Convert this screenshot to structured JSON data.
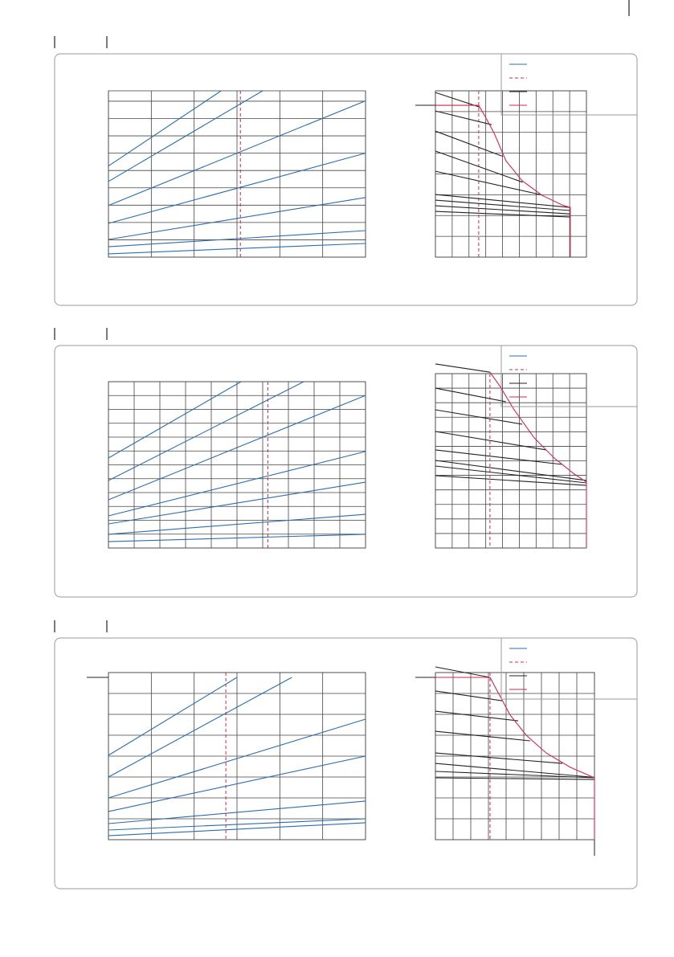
{
  "chart_data": [
    {
      "type": "line",
      "xlim": [
        0,
        6
      ],
      "ylim": [
        0,
        9.6
      ],
      "xticks": [
        0,
        1,
        2,
        3,
        4,
        5,
        6
      ],
      "yticks": [
        0,
        1,
        2,
        3,
        4,
        5,
        6,
        7,
        8,
        9
      ],
      "grid": true,
      "reference_x": 3.08,
      "reference_color": "#d5244f",
      "series": [
        {
          "color": "#2a6db0",
          "x": [
            0,
            2.63
          ],
          "values": [
            5.26,
            9.6
          ]
        },
        {
          "color": "#2a6db0",
          "x": [
            0,
            3.6
          ],
          "values": [
            4.37,
            9.6
          ]
        },
        {
          "color": "#2a6db0",
          "x": [
            0,
            6
          ],
          "values": [
            2.98,
            9.02
          ]
        },
        {
          "color": "#2a6db0",
          "x": [
            0,
            6
          ],
          "values": [
            1.95,
            6.0
          ]
        },
        {
          "color": "#2a6db0",
          "x": [
            0,
            6
          ],
          "values": [
            1.02,
            3.44
          ]
        },
        {
          "color": "#2a6db0",
          "x": [
            0,
            6
          ],
          "values": [
            0.6,
            1.53
          ]
        },
        {
          "color": "#2a6db0",
          "x": [
            0,
            6
          ],
          "values": [
            0.19,
            0.79
          ]
        }
      ]
    },
    {
      "type": "line",
      "xlim": [
        0,
        9
      ],
      "ylim": [
        0,
        8
      ],
      "xticks": [
        0,
        1,
        2,
        3,
        4,
        5,
        6,
        7,
        8,
        9
      ],
      "yticks": [
        0,
        1,
        2,
        3,
        4,
        5,
        6,
        7,
        8
      ],
      "grid": true,
      "reference_x": 2.58,
      "reference_color": "#d5244f",
      "series": [
        {
          "color": "#222222",
          "x": [
            0,
            2.63
          ],
          "values": [
            7.92,
            7.22
          ]
        },
        {
          "color": "#222222",
          "x": [
            0,
            3.35
          ],
          "values": [
            7.03,
            6.37
          ]
        },
        {
          "color": "#222222",
          "x": [
            0,
            4.0
          ],
          "values": [
            6.06,
            4.85
          ]
        },
        {
          "color": "#222222",
          "x": [
            0,
            5.2
          ],
          "values": [
            5.1,
            3.6
          ]
        },
        {
          "color": "#222222",
          "x": [
            0,
            6.3
          ],
          "values": [
            4.13,
            3.0
          ]
        },
        {
          "color": "#222222",
          "x": [
            0,
            8.04
          ],
          "values": [
            3.01,
            2.39
          ]
        },
        {
          "color": "#222222",
          "x": [
            0,
            8.04
          ],
          "values": [
            2.74,
            2.24
          ]
        },
        {
          "color": "#222222",
          "x": [
            0,
            8.04
          ],
          "values": [
            2.47,
            2.08
          ]
        },
        {
          "color": "#222222",
          "x": [
            0,
            8.04
          ],
          "values": [
            2.2,
            1.93
          ]
        },
        {
          "color": "#d5244f",
          "x": [
            0,
            2.58,
            2.97,
            3.49,
            4.21,
            5.17,
            6.36,
            7.56,
            8.04,
            8.04
          ],
          "values": [
            7.3,
            7.3,
            6.76,
            5.98,
            4.63,
            3.67,
            2.97,
            2.51,
            2.39,
            0
          ]
        }
      ]
    },
    {
      "type": "line",
      "xlim": [
        0,
        10
      ],
      "ylim": [
        0,
        12
      ],
      "xticks": [
        0,
        1,
        2,
        3,
        4,
        5,
        6,
        7,
        8,
        9,
        10
      ],
      "yticks": [
        0,
        1,
        2,
        3,
        4,
        5,
        6,
        7,
        8,
        9,
        10,
        11,
        12
      ],
      "grid": true,
      "reference_x": 6.2,
      "reference_color": "#d5244f",
      "series": [
        {
          "color": "#2a6db0",
          "x": [
            0,
            5.16
          ],
          "values": [
            6.49,
            12
          ]
        },
        {
          "color": "#2a6db0",
          "x": [
            0,
            7.6
          ],
          "values": [
            4.87,
            12
          ]
        },
        {
          "color": "#2a6db0",
          "x": [
            0,
            10
          ],
          "values": [
            3.48,
            11.01
          ]
        },
        {
          "color": "#2a6db0",
          "x": [
            0,
            10
          ],
          "values": [
            2.32,
            6.96
          ]
        },
        {
          "color": "#2a6db0",
          "x": [
            0,
            10
          ],
          "values": [
            1.74,
            4.75
          ]
        },
        {
          "color": "#2a6db0",
          "x": [
            0,
            10
          ],
          "values": [
            0.99,
            2.43
          ]
        },
        {
          "color": "#2a6db0",
          "x": [
            0,
            10
          ],
          "values": [
            0.46,
            0.99
          ]
        }
      ]
    },
    {
      "type": "line",
      "xlim": [
        0,
        9
      ],
      "ylim": [
        0,
        12
      ],
      "xticks": [
        0,
        1,
        2,
        3,
        4,
        5,
        6,
        7,
        8,
        9
      ],
      "yticks": [
        0,
        1,
        2,
        3,
        4,
        5,
        6,
        7,
        8,
        9,
        10,
        11,
        12
      ],
      "grid": true,
      "reference_x": 3.25,
      "reference_color": "#d5244f",
      "series": [
        {
          "color": "#222222",
          "x": [
            0,
            3.25
          ],
          "values": [
            12.67,
            12.1
          ]
        },
        {
          "color": "#222222",
          "x": [
            0,
            4.2
          ],
          "values": [
            11.0,
            10.07
          ]
        },
        {
          "color": "#222222",
          "x": [
            0,
            5.17
          ],
          "values": [
            9.51,
            8.52
          ]
        },
        {
          "color": "#222222",
          "x": [
            0,
            6.6
          ],
          "values": [
            8.02,
            6.75
          ]
        },
        {
          "color": "#222222",
          "x": [
            0,
            7.56
          ],
          "values": [
            6.75,
            5.75
          ]
        },
        {
          "color": "#222222",
          "x": [
            0,
            9
          ],
          "values": [
            6.03,
            4.65
          ]
        },
        {
          "color": "#222222",
          "x": [
            0,
            9
          ],
          "values": [
            5.64,
            4.48
          ]
        },
        {
          "color": "#222222",
          "x": [
            0,
            9
          ],
          "values": [
            4.98,
            4.31
          ]
        },
        {
          "color": "#d5244f",
          "x": [
            3.25,
            3.83,
            4.69,
            5.89,
            7.08,
            8.28,
            9,
            9
          ],
          "values": [
            12.1,
            11.17,
            9.51,
            7.58,
            6.19,
            5.09,
            4.54,
            0
          ]
        }
      ]
    },
    {
      "type": "line",
      "xlim": [
        0,
        6
      ],
      "ylim": [
        0,
        8
      ],
      "xticks": [
        0,
        1,
        2,
        3,
        4,
        5,
        6
      ],
      "yticks": [
        0,
        1,
        2,
        3,
        4,
        5,
        6,
        7,
        8
      ],
      "grid": true,
      "reference_x": 2.74,
      "reference_color": "#d5244f",
      "series": [
        {
          "color": "#2a6db0",
          "x": [
            0,
            3.0
          ],
          "values": [
            4.04,
            7.77
          ]
        },
        {
          "color": "#2a6db0",
          "x": [
            0,
            4.28
          ],
          "values": [
            3.0,
            7.77
          ]
        },
        {
          "color": "#2a6db0",
          "x": [
            0,
            6
          ],
          "values": [
            2.0,
            5.77
          ]
        },
        {
          "color": "#2a6db0",
          "x": [
            0,
            6
          ],
          "values": [
            1.35,
            4.0
          ]
        },
        {
          "color": "#2a6db0",
          "x": [
            0,
            6
          ],
          "values": [
            0.77,
            1.85
          ]
        },
        {
          "color": "#2a6db0",
          "x": [
            0,
            6
          ],
          "values": [
            0.46,
            1.0
          ]
        },
        {
          "color": "#2a6db0",
          "x": [
            0,
            6
          ],
          "values": [
            0.19,
            0.81
          ]
        }
      ]
    },
    {
      "type": "line",
      "xlim": [
        0,
        9
      ],
      "ylim": [
        0,
        8
      ],
      "xticks": [
        0,
        1,
        2,
        3,
        4,
        5,
        6,
        7,
        8,
        9
      ],
      "yticks": [
        0,
        1,
        2,
        3,
        4,
        5,
        6,
        7,
        8
      ],
      "grid": true,
      "reference_x": 3.09,
      "reference_color": "#d5244f",
      "series": [
        {
          "color": "#222222",
          "x": [
            0,
            3.09
          ],
          "values": [
            8.27,
            7.77
          ]
        },
        {
          "color": "#222222",
          "x": [
            0,
            3.77
          ],
          "values": [
            7.12,
            6.65
          ]
        },
        {
          "color": "#222222",
          "x": [
            0,
            4.68
          ],
          "values": [
            6.15,
            5.69
          ]
        },
        {
          "color": "#222222",
          "x": [
            0,
            5.36
          ],
          "values": [
            5.19,
            4.73
          ]
        },
        {
          "color": "#222222",
          "x": [
            0,
            7.18
          ],
          "values": [
            4.15,
            3.65
          ]
        },
        {
          "color": "#222222",
          "x": [
            0,
            8.77
          ],
          "values": [
            3.65,
            3.0
          ]
        },
        {
          "color": "#222222",
          "x": [
            0,
            9
          ],
          "values": [
            3.27,
            2.96
          ]
        },
        {
          "color": "#222222",
          "x": [
            0,
            9
          ],
          "values": [
            2.96,
            2.88
          ]
        },
        {
          "color": "#d5244f",
          "x": [
            0,
            3.09,
            3.55,
            4.23,
            5.14,
            6.27,
            7.64,
            9,
            9
          ],
          "values": [
            7.77,
            7.77,
            7.04,
            5.96,
            5.0,
            4.15,
            3.46,
            2.96,
            0
          ]
        }
      ]
    }
  ]
}
